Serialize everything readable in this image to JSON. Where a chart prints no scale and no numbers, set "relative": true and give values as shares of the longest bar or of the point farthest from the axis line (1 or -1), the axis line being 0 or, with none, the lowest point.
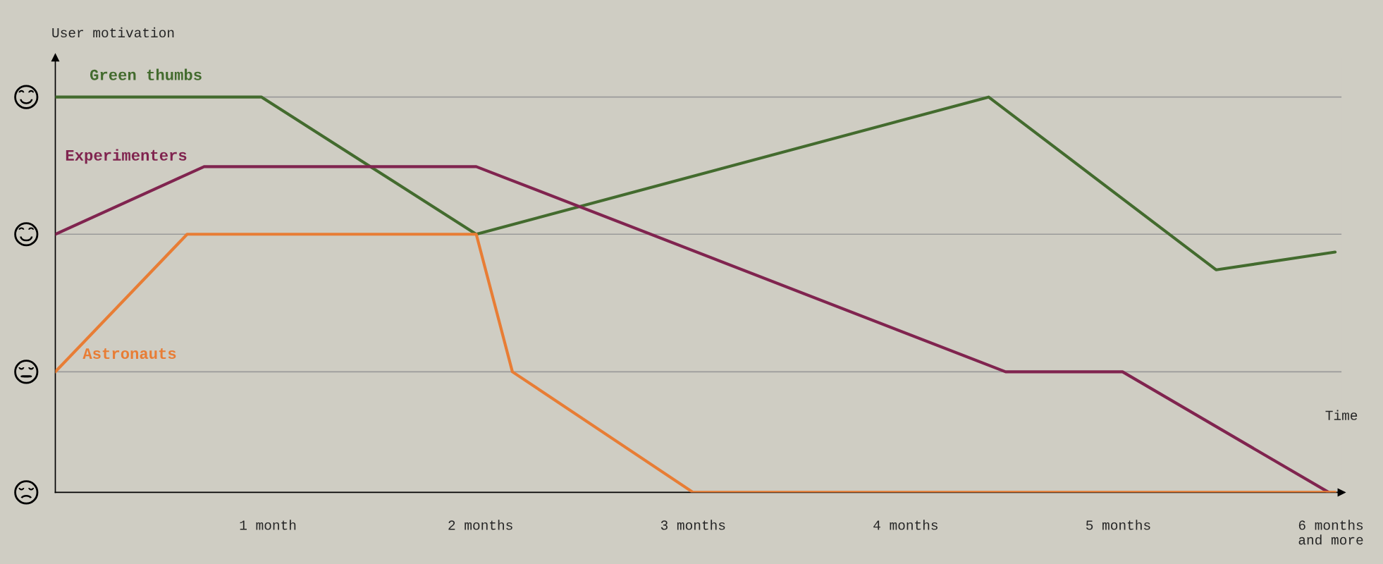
{
  "chart_data": {
    "type": "line",
    "relative": true,
    "ylabel": "User motivation",
    "xlabel": "Time",
    "xlim": [
      0,
      6.05
    ],
    "xticks": [
      {
        "value": 1,
        "label": "1 month"
      },
      {
        "value": 2,
        "label": "2 months"
      },
      {
        "value": 3,
        "label": "3 months"
      },
      {
        "value": 4,
        "label": "4 months"
      },
      {
        "value": 5,
        "label": "5 months"
      },
      {
        "value": 6,
        "label": "6 months\nand more"
      }
    ],
    "series": [
      {
        "name": "Green thumbs",
        "color": "#436b2e",
        "x": [
          0,
          0.97,
          1.98,
          4.39,
          5.46,
          6.02
        ],
        "values": [
          1,
          1,
          0.653,
          1,
          0.563,
          0.608
        ]
      },
      {
        "name": "Experimenters",
        "color": "#80244f",
        "x": [
          0,
          0.7,
          1.98,
          4.47,
          5.02,
          5.99
        ],
        "values": [
          0.653,
          0.824,
          0.824,
          0.305,
          0.305,
          0
        ]
      },
      {
        "name": "Astronauts",
        "color": "#e87d35",
        "x": [
          0,
          0.62,
          1.98,
          2.15,
          3.0,
          6.02
        ],
        "values": [
          0.305,
          0.653,
          0.653,
          0.305,
          0,
          0
        ]
      }
    ],
    "ref_lines": [
      {
        "axis": "y",
        "value": 1,
        "color": "#9a9a9a"
      },
      {
        "axis": "y",
        "value": 0.653,
        "color": "#9a9a9a"
      },
      {
        "axis": "y",
        "value": 0.305,
        "color": "#9a9a9a"
      }
    ],
    "grid": false,
    "legend": false,
    "marker": "none",
    "line_style": "solid"
  }
}
